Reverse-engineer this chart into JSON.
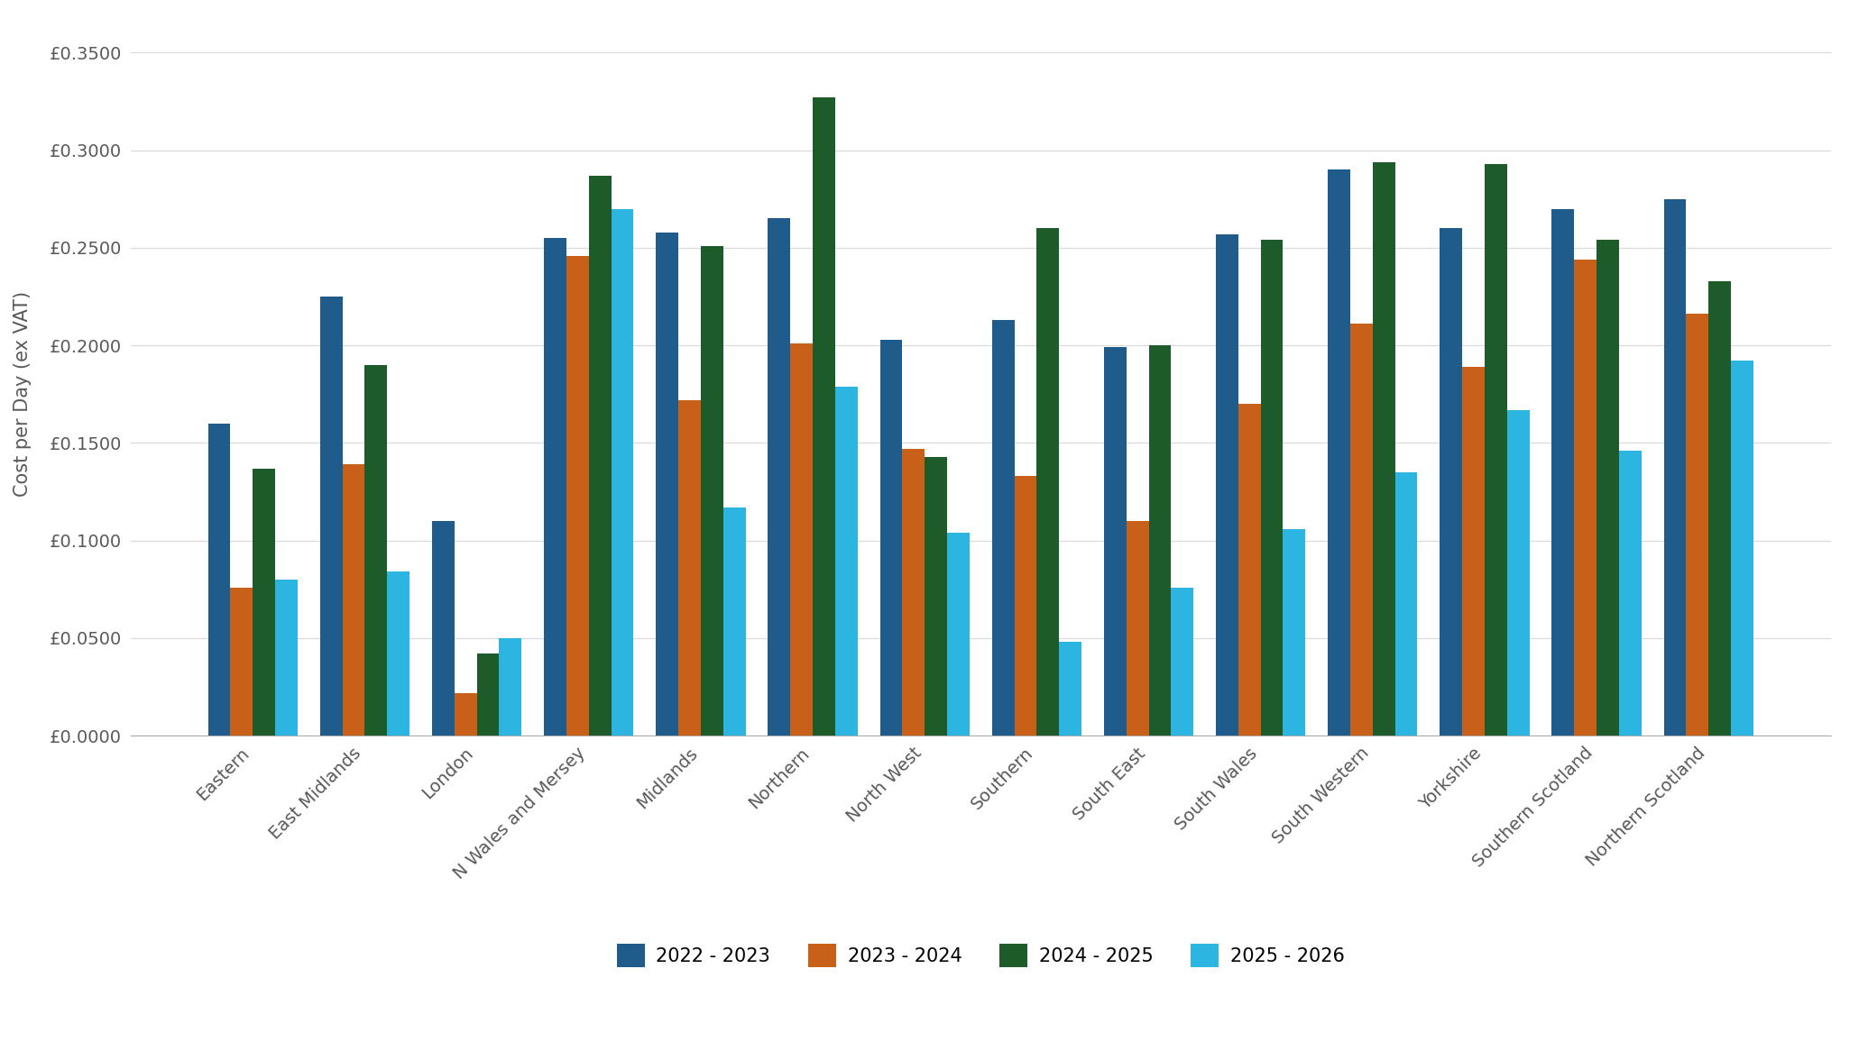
{
  "categories": [
    "Eastern",
    "East Midlands",
    "London",
    "N Wales and Mersey",
    "Midlands",
    "Northern",
    "North West",
    "Southern",
    "South East",
    "South Wales",
    "South Western",
    "Yorkshire",
    "Southern Scotland",
    "Northern Scotland"
  ],
  "series": {
    "2022 - 2023": [
      0.16,
      0.225,
      0.11,
      0.255,
      0.258,
      0.265,
      0.203,
      0.213,
      0.199,
      0.257,
      0.29,
      0.26,
      0.27,
      0.275
    ],
    "2023 - 2024": [
      0.076,
      0.139,
      0.022,
      0.246,
      0.172,
      0.201,
      0.147,
      0.133,
      0.11,
      0.17,
      0.211,
      0.189,
      0.244,
      0.216
    ],
    "2024 - 2025": [
      0.137,
      0.19,
      0.042,
      0.287,
      0.251,
      0.327,
      0.143,
      0.26,
      0.2,
      0.254,
      0.294,
      0.293,
      0.254,
      0.233
    ],
    "2025 - 2026": [
      0.08,
      0.084,
      0.05,
      0.27,
      0.117,
      0.179,
      0.104,
      0.048,
      0.076,
      0.106,
      0.135,
      0.167,
      0.146,
      0.192
    ]
  },
  "colors": {
    "2022 - 2023": "#1F5C8B",
    "2023 - 2024": "#C9601A",
    "2024 - 2025": "#1D5C2A",
    "2025 - 2026": "#2BB5E0"
  },
  "ylabel": "Cost per Day (ex VAT)",
  "ylim": [
    0,
    0.35
  ],
  "yticks": [
    0.0,
    0.05,
    0.1,
    0.15,
    0.2,
    0.25,
    0.3,
    0.35
  ],
  "background_color": "#ffffff",
  "grid_color": "#d9d9d9",
  "bar_width": 0.2,
  "legend_fontsize": 15,
  "axis_label_fontsize": 15,
  "tick_fontsize": 14,
  "tick_color": "#595959",
  "axis_color": "#595959"
}
